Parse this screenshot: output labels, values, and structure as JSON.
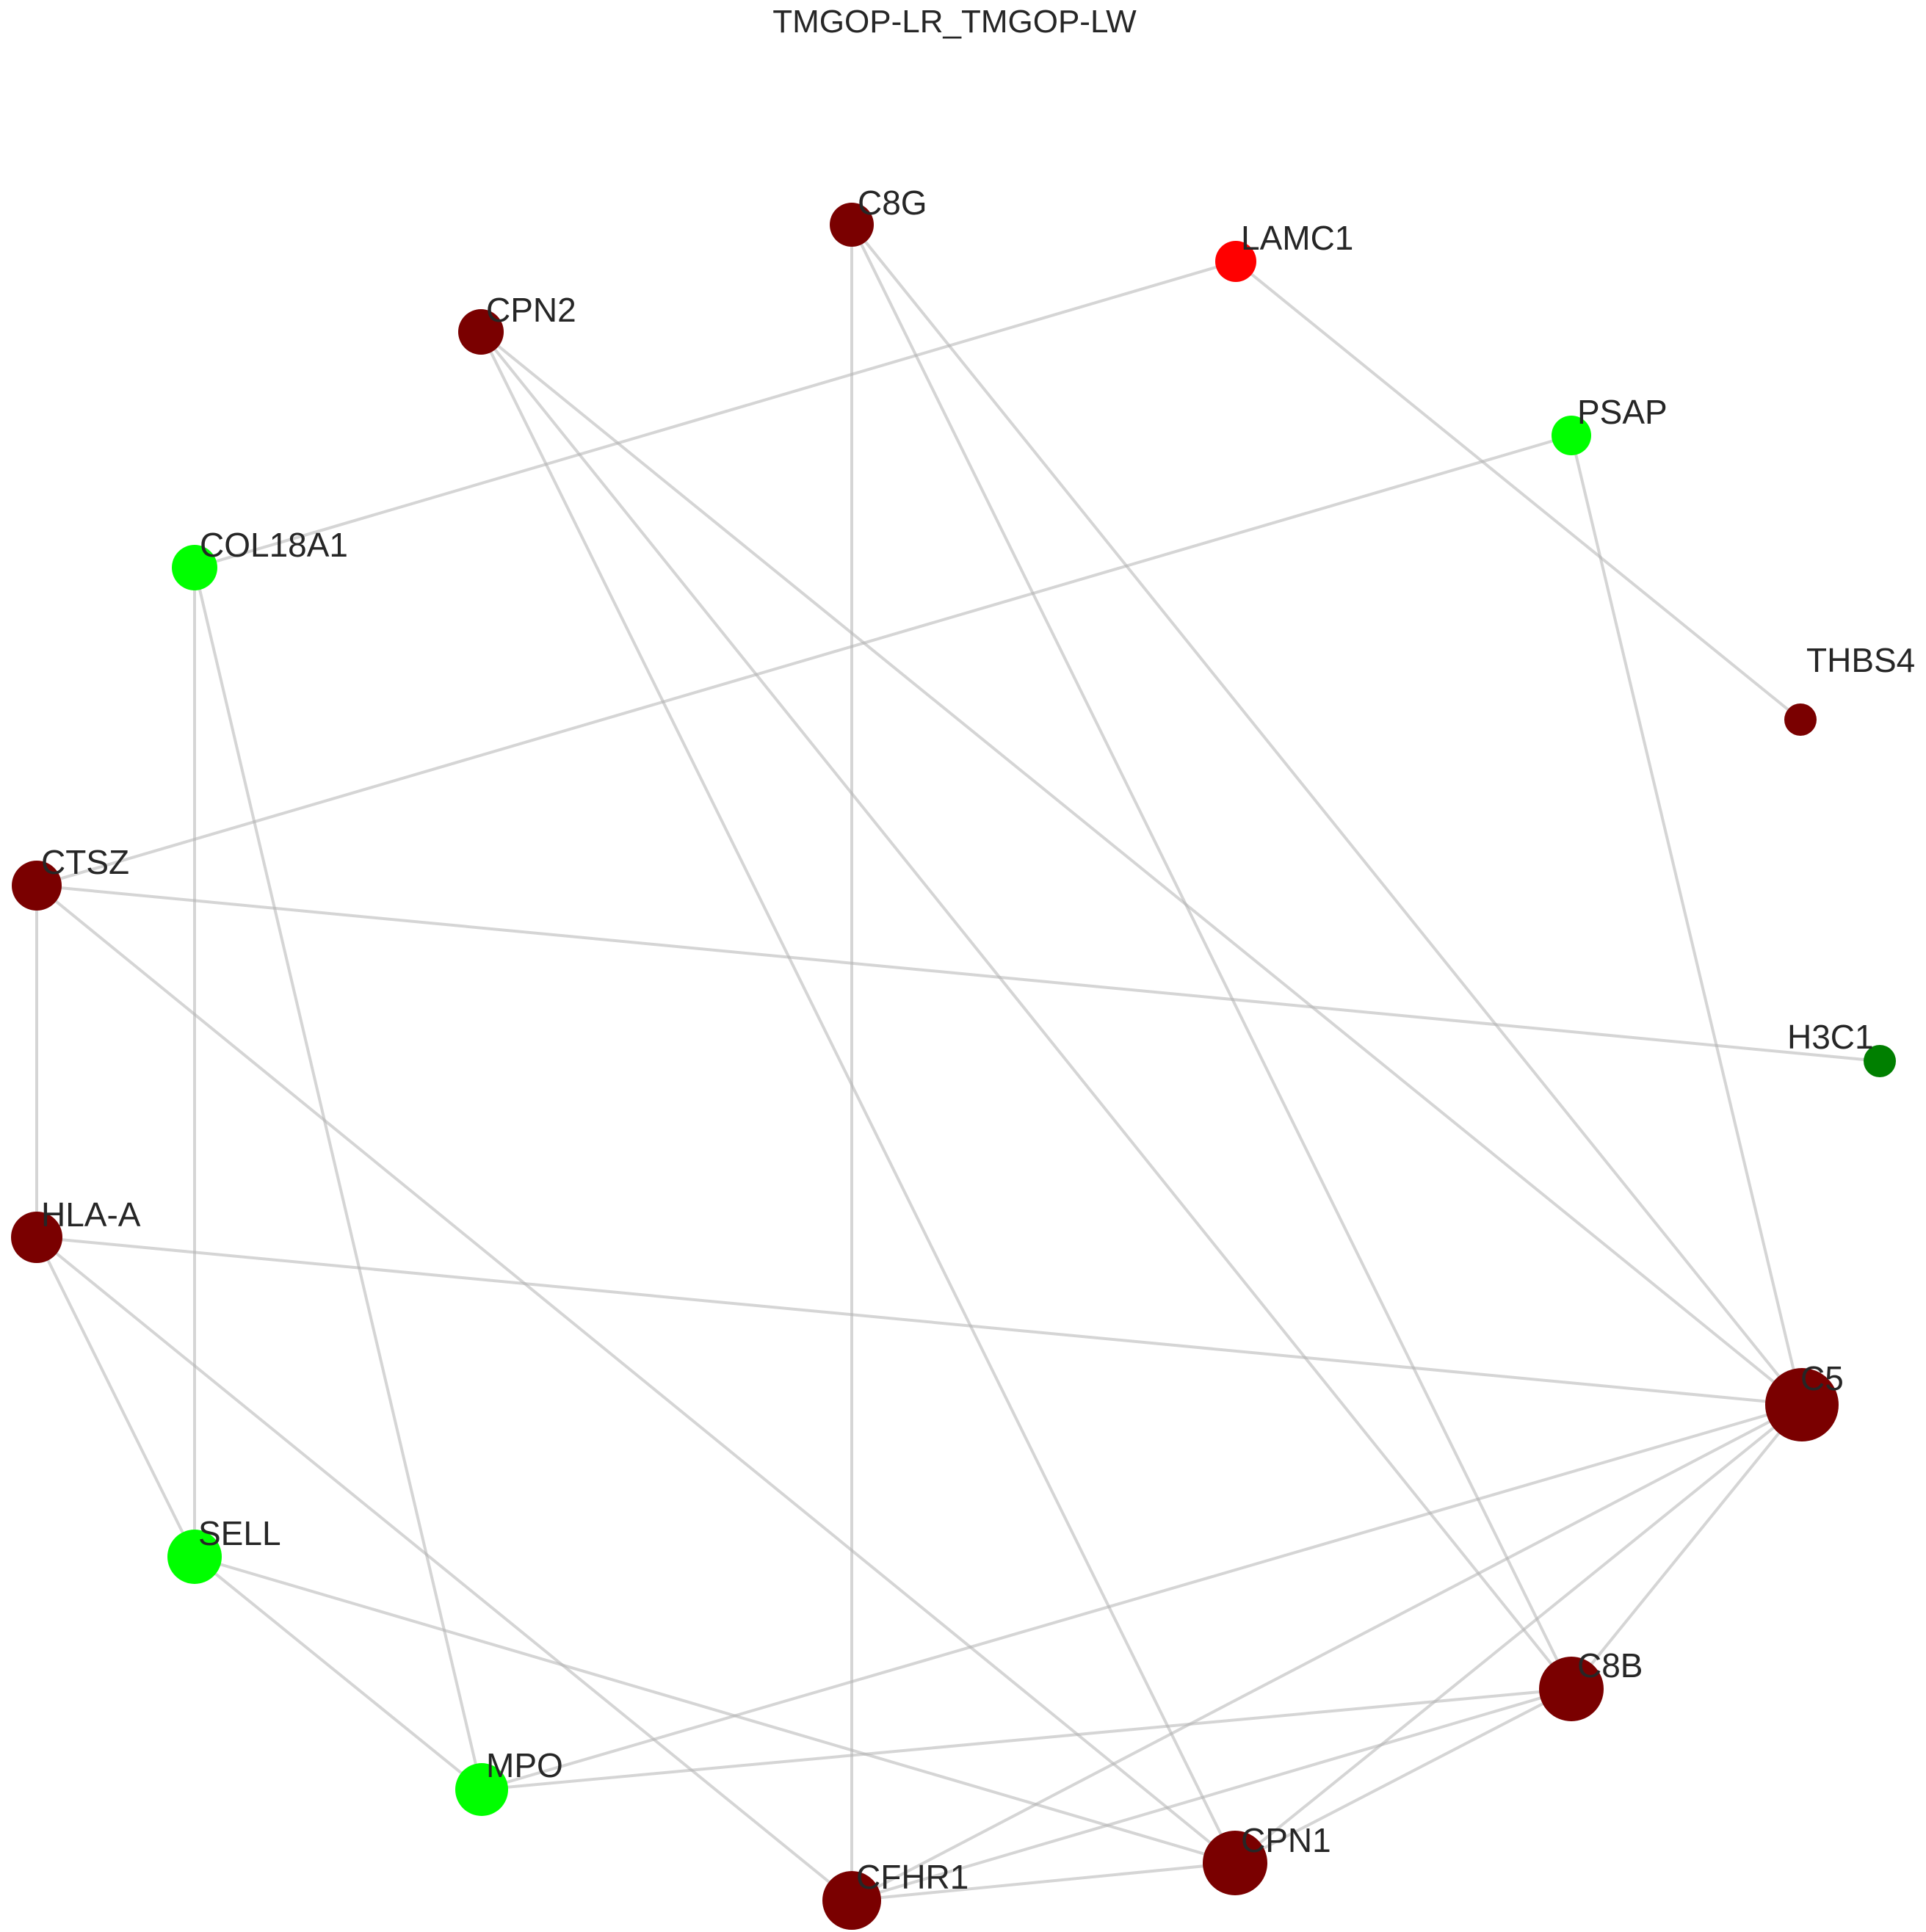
{
  "title": "TMGOP-LR_TMGOP-LW",
  "colors": {
    "dark_red": "#7a0000",
    "red": "#ff0000",
    "bright_green": "#00ff00",
    "dark_green": "#007f00",
    "edge": "#b3b3b3"
  },
  "nodes": [
    {
      "id": "C8G",
      "label": "C8G",
      "color": "dark_red"
    },
    {
      "id": "LAMC1",
      "label": "LAMC1",
      "color": "red"
    },
    {
      "id": "CPN2",
      "label": "CPN2",
      "color": "dark_red"
    },
    {
      "id": "PSAP",
      "label": "PSAP",
      "color": "bright_green"
    },
    {
      "id": "COL18A1",
      "label": "COL18A1",
      "color": "bright_green"
    },
    {
      "id": "THBS4",
      "label": "THBS4",
      "color": "dark_red"
    },
    {
      "id": "CTSZ",
      "label": "CTSZ",
      "color": "dark_red"
    },
    {
      "id": "H3C1",
      "label": "H3C1",
      "color": "dark_green"
    },
    {
      "id": "HLA-A",
      "label": "HLA-A",
      "color": "dark_red"
    },
    {
      "id": "C5",
      "label": "C5",
      "color": "dark_red"
    },
    {
      "id": "SELL",
      "label": "SELL",
      "color": "bright_green"
    },
    {
      "id": "C8B",
      "label": "C8B",
      "color": "dark_red"
    },
    {
      "id": "MPO",
      "label": "MPO",
      "color": "bright_green"
    },
    {
      "id": "CPN1",
      "label": "CPN1",
      "color": "dark_red"
    },
    {
      "id": "CFHR1",
      "label": "CFHR1",
      "color": "dark_red"
    }
  ],
  "edges": [
    [
      "C8G",
      "CFHR1"
    ],
    [
      "C8G",
      "C5"
    ],
    [
      "C8G",
      "C8B"
    ],
    [
      "LAMC1",
      "COL18A1"
    ],
    [
      "LAMC1",
      "THBS4"
    ],
    [
      "CPN2",
      "C5"
    ],
    [
      "CPN2",
      "C8B"
    ],
    [
      "CPN2",
      "CPN1"
    ],
    [
      "PSAP",
      "CTSZ"
    ],
    [
      "PSAP",
      "C5"
    ],
    [
      "COL18A1",
      "SELL"
    ],
    [
      "COL18A1",
      "MPO"
    ],
    [
      "CTSZ",
      "H3C1"
    ],
    [
      "CTSZ",
      "HLA-A"
    ],
    [
      "CTSZ",
      "CPN1"
    ],
    [
      "HLA-A",
      "C5"
    ],
    [
      "HLA-A",
      "SELL"
    ],
    [
      "HLA-A",
      "CFHR1"
    ],
    [
      "C5",
      "MPO"
    ],
    [
      "C5",
      "CFHR1"
    ],
    [
      "C5",
      "CPN1"
    ],
    [
      "C5",
      "C8B"
    ],
    [
      "SELL",
      "MPO"
    ],
    [
      "SELL",
      "CPN1"
    ],
    [
      "C8B",
      "MPO"
    ],
    [
      "C8B",
      "CFHR1"
    ],
    [
      "C8B",
      "CPN1"
    ],
    [
      "CPN1",
      "CFHR1"
    ]
  ]
}
